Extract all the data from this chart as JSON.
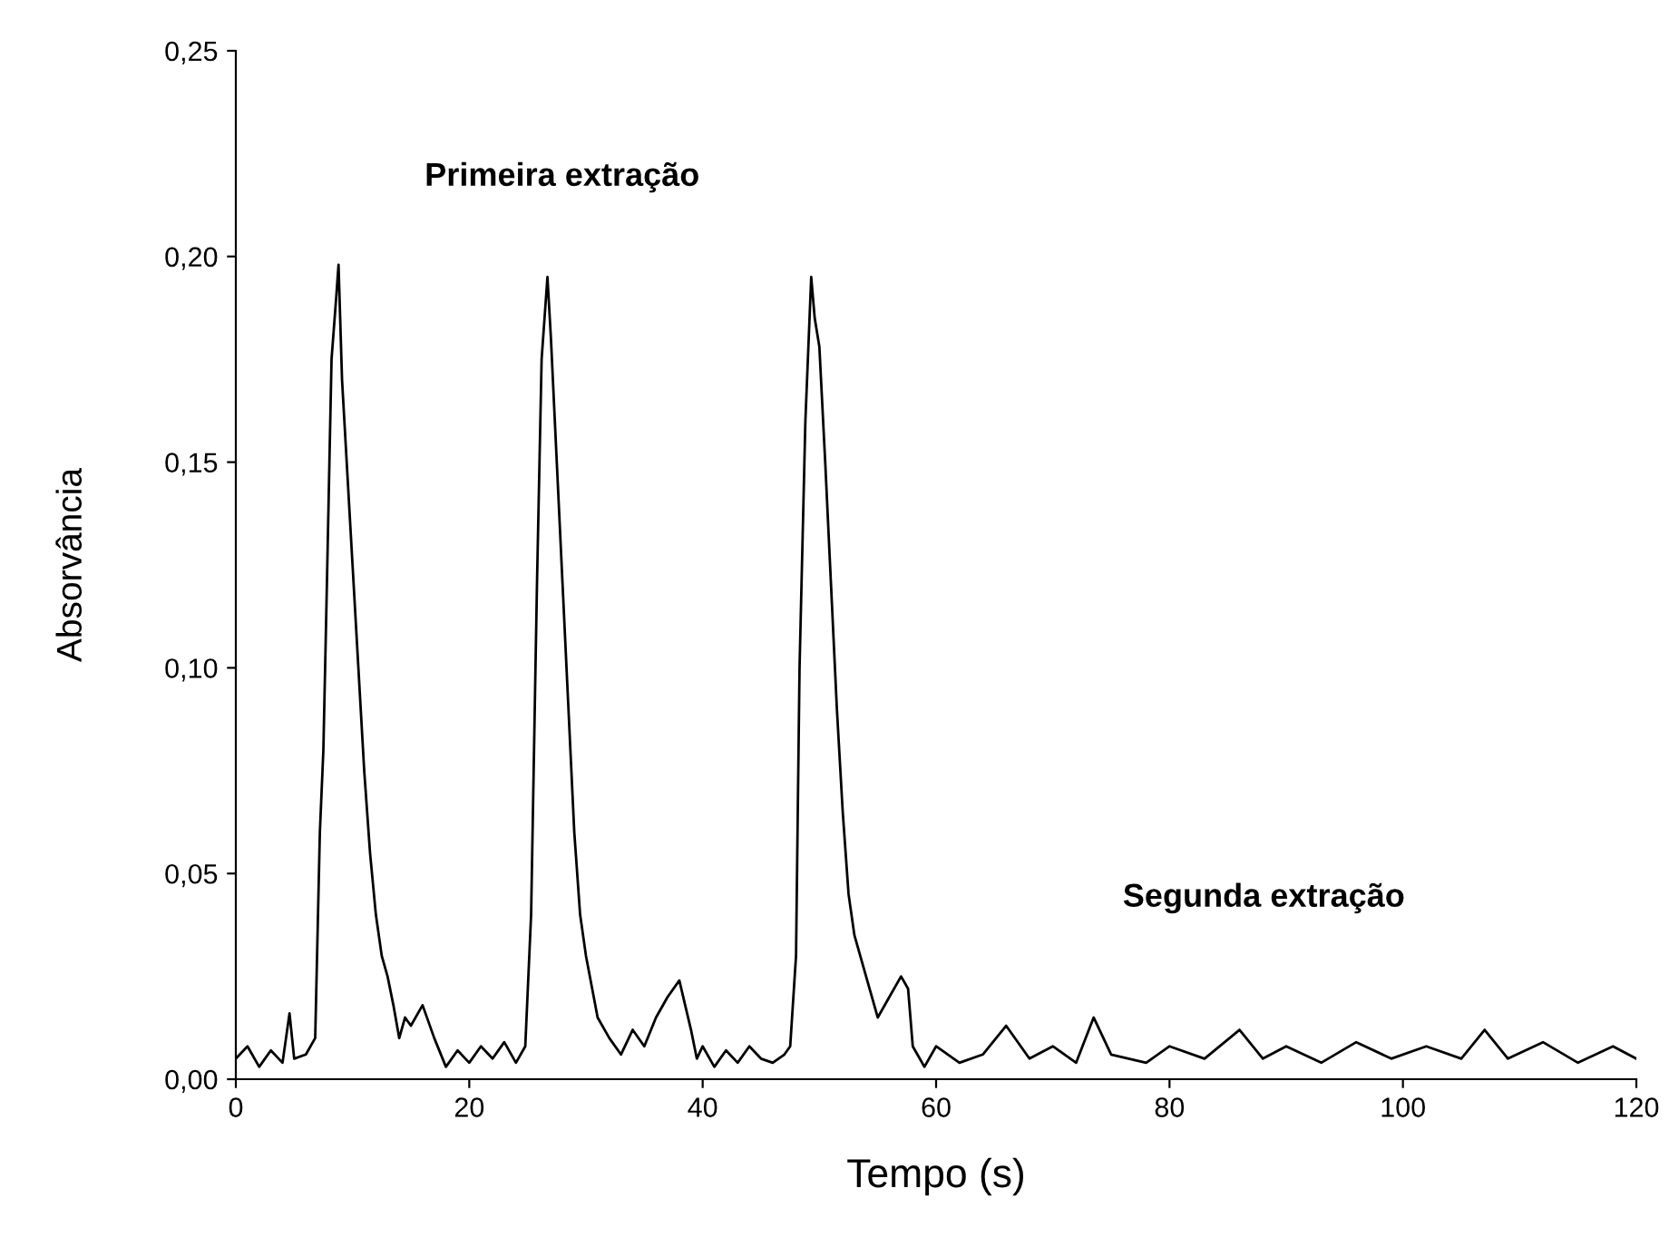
{
  "chart_data": {
    "type": "line",
    "xlabel": "Tempo (s)",
    "ylabel": "Absorvância",
    "xlim": [
      0,
      120
    ],
    "ylim": [
      0,
      0.25
    ],
    "xticks": [
      0,
      20,
      40,
      60,
      80,
      100,
      120
    ],
    "yticks": [
      {
        "value": 0,
        "label": "0,00"
      },
      {
        "value": 0.05,
        "label": "0,05"
      },
      {
        "value": 0.1,
        "label": "0,10"
      },
      {
        "value": 0.15,
        "label": "0,15"
      },
      {
        "value": 0.2,
        "label": "0,20"
      },
      {
        "value": 0.25,
        "label": "0,25"
      }
    ],
    "annotations": [
      "Primeira extração",
      "Segunda extração"
    ],
    "grid": false,
    "marker": "none",
    "line_style": "solid",
    "series": [
      {
        "color": "#000000",
        "x": [
          0,
          1,
          2,
          3,
          4,
          4.6,
          5,
          6,
          6.8,
          7.2,
          7.5,
          7.8,
          8.2,
          8.6,
          8.8,
          9.1,
          9.5,
          10,
          10.5,
          11,
          11.5,
          12,
          12.5,
          13,
          13.5,
          14,
          14.5,
          15,
          16,
          17,
          18,
          19,
          20,
          21,
          22,
          23,
          24,
          24.8,
          25.3,
          25.8,
          26.2,
          26.7,
          27,
          27.5,
          28,
          28.5,
          29,
          29.5,
          30,
          31,
          32,
          33,
          34,
          35,
          36,
          37,
          38,
          39,
          39.5,
          40,
          41,
          42,
          43,
          44,
          45,
          46,
          47,
          47.5,
          48,
          48.3,
          48.8,
          49.3,
          49.6,
          50,
          50.5,
          51,
          51.5,
          52,
          52.5,
          53,
          54,
          55,
          56,
          57,
          57.6,
          58,
          59,
          60,
          62,
          64,
          66,
          68,
          70,
          72,
          73.5,
          75,
          78,
          80,
          83,
          86,
          88,
          90,
          93,
          96,
          99,
          102,
          105,
          107,
          109,
          112,
          115,
          118,
          120
        ],
        "values": [
          0.005,
          0.008,
          0.003,
          0.007,
          0.004,
          0.016,
          0.005,
          0.006,
          0.01,
          0.06,
          0.08,
          0.12,
          0.175,
          0.19,
          0.198,
          0.17,
          0.15,
          0.125,
          0.1,
          0.075,
          0.055,
          0.04,
          0.03,
          0.025,
          0.018,
          0.01,
          0.015,
          0.013,
          0.018,
          0.01,
          0.003,
          0.007,
          0.004,
          0.008,
          0.005,
          0.009,
          0.004,
          0.008,
          0.04,
          0.12,
          0.175,
          0.195,
          0.18,
          0.15,
          0.12,
          0.09,
          0.06,
          0.04,
          0.03,
          0.015,
          0.01,
          0.006,
          0.012,
          0.008,
          0.015,
          0.02,
          0.024,
          0.012,
          0.005,
          0.008,
          0.003,
          0.007,
          0.004,
          0.008,
          0.005,
          0.004,
          0.006,
          0.008,
          0.03,
          0.1,
          0.16,
          0.195,
          0.185,
          0.178,
          0.15,
          0.12,
          0.09,
          0.065,
          0.045,
          0.035,
          0.025,
          0.015,
          0.02,
          0.025,
          0.022,
          0.008,
          0.003,
          0.008,
          0.004,
          0.006,
          0.013,
          0.005,
          0.008,
          0.004,
          0.015,
          0.006,
          0.004,
          0.008,
          0.005,
          0.012,
          0.005,
          0.008,
          0.004,
          0.009,
          0.005,
          0.008,
          0.005,
          0.012,
          0.005,
          0.009,
          0.004,
          0.008,
          0.005
        ]
      }
    ]
  }
}
